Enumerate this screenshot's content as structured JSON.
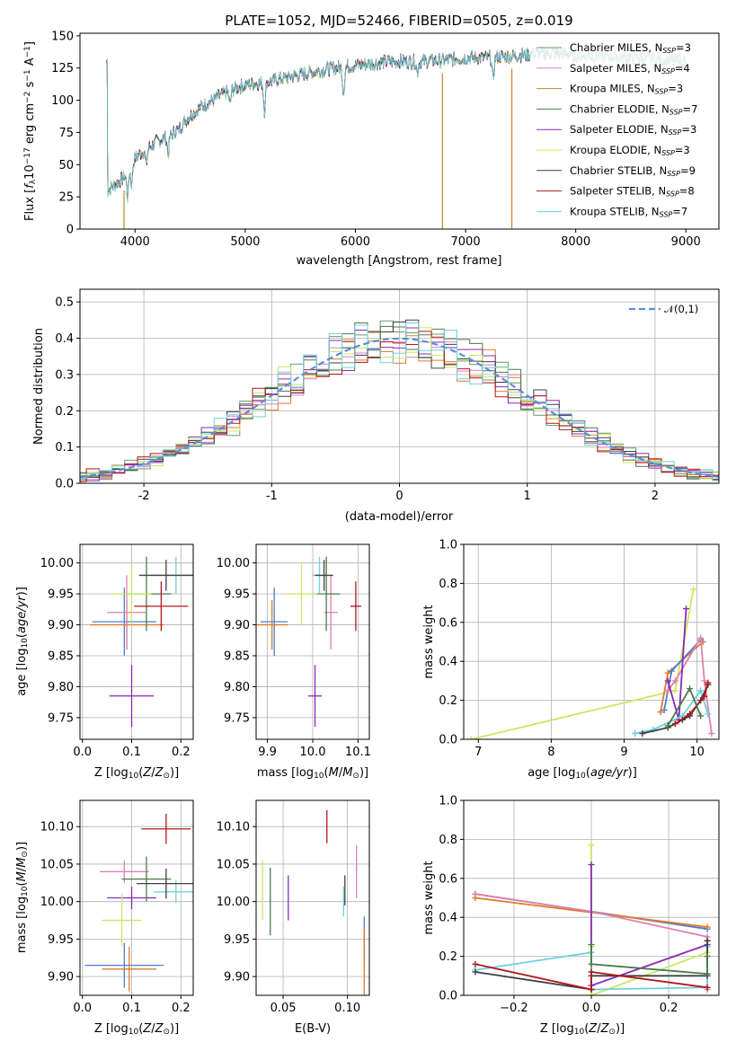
{
  "colors": {
    "Chabrier MILES": "#6a9a6a",
    "Salpeter MILES": "#e07bd0",
    "Kroupa MILES": "#c08a20",
    "Chabrier ELODIE": "#4a7a4a",
    "Salpeter ELODIE": "#8a2ab8",
    "Kroupa ELODIE": "#e0e040",
    "Chabrier STELIB": "#404040",
    "Salpeter STELIB": "#b01818",
    "Kroupa STELIB": "#70d0e0",
    "fit_blue": "#4a7fd0",
    "fit_orange": "#e07a2a",
    "fit_pink": "#e080b0",
    "fit_lime": "#c8e860",
    "normal_curve": "#5b8fd6"
  },
  "chart_data": [
    {
      "id": "spectrum",
      "type": "line",
      "title": "PLATE=1052, MJD=52466, FIBERID=0505, z=0.019",
      "xlabel": "wavelength [Angstrom, rest frame]",
      "ylabel": "Flux [f_λ 10^-17 erg cm^-2 s^-1 A^-1]",
      "xlim": [
        3500,
        9300
      ],
      "ylim": [
        0,
        152
      ],
      "xticks": [
        4000,
        5000,
        6000,
        7000,
        8000,
        9000
      ],
      "yticks": [
        0,
        25,
        50,
        75,
        100,
        125,
        150
      ],
      "grid": false,
      "legend_position": "top-right",
      "legend": [
        {
          "label": "Chabrier MILES",
          "nssp": "3"
        },
        {
          "label": "Salpeter MILES",
          "nssp": "4"
        },
        {
          "label": "Kroupa MILES",
          "nssp": "3"
        },
        {
          "label": "Chabrier ELODIE",
          "nssp": "7"
        },
        {
          "label": "Salpeter ELODIE",
          "nssp": "3"
        },
        {
          "label": "Kroupa ELODIE",
          "nssp": "3"
        },
        {
          "label": "Chabrier STELIB",
          "nssp": "9"
        },
        {
          "label": "Salpeter STELIB",
          "nssp": "8"
        },
        {
          "label": "Kroupa STELIB",
          "nssp": "7"
        }
      ],
      "continuum": {
        "x": [
          3750,
          3900,
          4000,
          4100,
          4200,
          4300,
          4400,
          4500,
          4600,
          4800,
          5000,
          5200,
          5500,
          5800,
          6000,
          6300,
          6500,
          6800,
          7000,
          7200,
          7500,
          7800,
          8000,
          8500,
          9000
        ],
        "y": [
          30,
          40,
          55,
          62,
          68,
          72,
          78,
          88,
          95,
          105,
          112,
          114,
          120,
          125,
          127,
          130,
          130,
          131,
          133,
          133,
          135,
          137,
          135,
          133,
          130
        ]
      },
      "absorption_features": [
        {
          "x": 3933,
          "depth": 20
        },
        {
          "x": 3968,
          "depth": 15
        },
        {
          "x": 4102,
          "depth": 12
        },
        {
          "x": 4300,
          "depth": 14
        },
        {
          "x": 4861,
          "depth": 10
        },
        {
          "x": 5175,
          "depth": 22
        },
        {
          "x": 5893,
          "depth": 20
        },
        {
          "x": 6563,
          "depth": 8
        },
        {
          "x": 7250,
          "depth": 18
        }
      ],
      "drop_lines": [
        {
          "x": 3900,
          "color": "Kroupa MILES"
        },
        {
          "x": 6790,
          "color": "Kroupa MILES"
        },
        {
          "x": 7420,
          "color": "fit_orange"
        }
      ],
      "range_ends": [
        {
          "series": "Salpeter STELIB",
          "x_end": 7400
        },
        {
          "series": "Chabrier STELIB",
          "x_end": 8000
        }
      ]
    },
    {
      "id": "residuals",
      "type": "histogram",
      "xlabel": "(data-model)/error",
      "ylabel": "Normed distribution",
      "xlim": [
        -2.5,
        2.5
      ],
      "ylim": [
        0,
        0.535
      ],
      "xticks": [
        -2,
        -1,
        0,
        1,
        2
      ],
      "yticks": [
        0.0,
        0.1,
        0.2,
        0.3,
        0.4,
        0.5
      ],
      "grid": true,
      "legend_position": "top-right",
      "legend": [
        "𝒩(0,1)"
      ],
      "bin_width": 0.1,
      "curve": {
        "mean": 0,
        "sigma": 1,
        "style": "dashed"
      },
      "series": [
        {
          "name": "Chabrier MILES",
          "color": "Chabrier MILES"
        },
        {
          "name": "Salpeter MILES",
          "color": "Salpeter MILES"
        },
        {
          "name": "Kroupa MILES",
          "color": "fit_orange"
        },
        {
          "name": "Chabrier ELODIE",
          "color": "Chabrier ELODIE"
        },
        {
          "name": "Salpeter ELODIE",
          "color": "Salpeter ELODIE"
        },
        {
          "name": "Kroupa ELODIE",
          "color": "fit_lime"
        },
        {
          "name": "Chabrier STELIB",
          "color": "Chabrier STELIB"
        },
        {
          "name": "Salpeter STELIB",
          "color": "Salpeter STELIB"
        },
        {
          "name": "Kroupa STELIB",
          "color": "Kroupa STELIB"
        }
      ]
    },
    {
      "id": "age_vs_Z",
      "type": "errorbar",
      "xlabel": "Z [log10(Z/Z⊙)]",
      "ylabel": "age [log10(age/yr)]",
      "xlim": [
        -0.005,
        0.225
      ],
      "ylim": [
        9.715,
        10.03
      ],
      "xticks": [
        0.0,
        0.1,
        0.2
      ],
      "xtick_labels": [
        "0.0",
        "0.1",
        "0.2"
      ],
      "yticks": [
        9.75,
        9.8,
        9.85,
        9.9,
        9.95,
        10.0
      ],
      "yticklabels": [
        "9.75",
        "9.80",
        "9.85",
        "9.90",
        "9.95",
        "10.00"
      ],
      "grid": true,
      "points": [
        {
          "x": 0.085,
          "y": 9.905,
          "xerr": 0.065,
          "yerr": 0.055,
          "color": "fit_blue"
        },
        {
          "x": 0.09,
          "y": 9.9,
          "xerr": 0.075,
          "yerr": 0.04,
          "color": "fit_orange"
        },
        {
          "x": 0.09,
          "y": 9.92,
          "xerr": 0.04,
          "yerr": 0.06,
          "color": "fit_pink"
        },
        {
          "x": 0.1,
          "y": 9.785,
          "xerr": 0.045,
          "yerr": 0.05,
          "color": "Salpeter ELODIE"
        },
        {
          "x": 0.13,
          "y": 9.95,
          "xerr": 0.05,
          "yerr": 0.06,
          "color": "Chabrier ELODIE"
        },
        {
          "x": 0.1,
          "y": 9.95,
          "xerr": 0.04,
          "yerr": 0.05,
          "color": "fit_lime"
        },
        {
          "x": 0.16,
          "y": 9.93,
          "xerr": 0.055,
          "yerr": 0.04,
          "color": "Salpeter STELIB"
        },
        {
          "x": 0.19,
          "y": 9.98,
          "xerr": 0.05,
          "yerr": 0.03,
          "color": "Kroupa STELIB"
        },
        {
          "x": 0.17,
          "y": 9.98,
          "xerr": 0.055,
          "yerr": 0.025,
          "color": "Chabrier STELIB"
        }
      ]
    },
    {
      "id": "age_vs_mass",
      "type": "errorbar",
      "xlabel": "mass [log10(M/M⊙)]",
      "xlim": [
        9.875,
        10.125
      ],
      "ylim": [
        9.715,
        10.03
      ],
      "xticks": [
        9.9,
        10.0,
        10.1
      ],
      "xtick_labels": [
        "9.9",
        "10.0",
        "10.1"
      ],
      "yticks": [
        9.75,
        9.8,
        9.85,
        9.9,
        9.95,
        10.0
      ],
      "yticklabels": [
        "9.75",
        "9.80",
        "9.85",
        "9.90",
        "9.95",
        "10.00"
      ],
      "grid": true,
      "points": [
        {
          "x": 9.915,
          "y": 9.905,
          "xerr": 0.03,
          "yerr": 0.055,
          "color": "fit_blue"
        },
        {
          "x": 9.91,
          "y": 9.9,
          "xerr": 0.035,
          "yerr": 0.04,
          "color": "fit_orange"
        },
        {
          "x": 10.04,
          "y": 9.92,
          "xerr": 0.015,
          "yerr": 0.06,
          "color": "fit_pink"
        },
        {
          "x": 10.005,
          "y": 9.785,
          "xerr": 0.015,
          "yerr": 0.05,
          "color": "Salpeter ELODIE"
        },
        {
          "x": 10.03,
          "y": 9.95,
          "xerr": 0.03,
          "yerr": 0.06,
          "color": "Chabrier ELODIE"
        },
        {
          "x": 9.975,
          "y": 9.95,
          "xerr": 0.035,
          "yerr": 0.05,
          "color": "fit_lime"
        },
        {
          "x": 10.095,
          "y": 9.93,
          "xerr": 0.012,
          "yerr": 0.04,
          "color": "Salpeter STELIB"
        },
        {
          "x": 10.015,
          "y": 9.98,
          "xerr": 0.015,
          "yerr": 0.03,
          "color": "Kroupa STELIB"
        },
        {
          "x": 10.025,
          "y": 9.98,
          "xerr": 0.02,
          "yerr": 0.025,
          "color": "Chabrier STELIB"
        }
      ]
    },
    {
      "id": "weight_vs_age",
      "type": "line",
      "xlabel": "age [log10(age/yr)]",
      "ylabel": "mass weight",
      "xlim": [
        6.8,
        10.3
      ],
      "ylim": [
        0,
        1
      ],
      "xticks": [
        7,
        8,
        9,
        10
      ],
      "yticks": [
        0.0,
        0.2,
        0.4,
        0.6,
        0.8,
        1.0
      ],
      "yticklabels": [
        "0.0",
        "0.2",
        "0.4",
        "0.6",
        "0.8",
        "1.0"
      ],
      "grid": true,
      "series": [
        {
          "color": "fit_lime",
          "x": [
            6.9,
            9.7,
            9.95
          ],
          "y": [
            0.0,
            0.25,
            0.77
          ]
        },
        {
          "color": "fit_orange",
          "x": [
            9.5,
            9.6,
            10.08
          ],
          "y": [
            0.14,
            0.34,
            0.5
          ]
        },
        {
          "color": "fit_blue",
          "x": [
            9.55,
            9.65,
            10.05
          ],
          "y": [
            0.15,
            0.35,
            0.51
          ]
        },
        {
          "color": "fit_pink",
          "x": [
            9.6,
            9.7,
            10.05,
            10.1,
            10.2
          ],
          "y": [
            0.25,
            0.3,
            0.52,
            0.3,
            0.03
          ]
        },
        {
          "color": "Salpeter ELODIE",
          "x": [
            9.6,
            9.75,
            9.85
          ],
          "y": [
            0.3,
            0.1,
            0.67
          ]
        },
        {
          "color": "Kroupa STELIB",
          "x": [
            9.15,
            9.4,
            9.8,
            10.05,
            10.15
          ],
          "y": [
            0.03,
            0.05,
            0.12,
            0.25,
            0.13
          ]
        },
        {
          "color": "Chabrier STELIB",
          "x": [
            9.25,
            9.6,
            9.8,
            9.9,
            10.05,
            10.15
          ],
          "y": [
            0.03,
            0.06,
            0.1,
            0.12,
            0.2,
            0.28
          ]
        },
        {
          "color": "Salpeter STELIB",
          "x": [
            9.7,
            9.9,
            10.1,
            10.15
          ],
          "y": [
            0.08,
            0.13,
            0.22,
            0.29
          ]
        },
        {
          "color": "Chabrier ELODIE",
          "x": [
            9.6,
            9.9,
            10.05
          ],
          "y": [
            0.07,
            0.26,
            0.12
          ]
        }
      ]
    },
    {
      "id": "mass_vs_Z",
      "type": "errorbar",
      "xlabel": "Z [log10(Z/Z⊙)]",
      "ylabel": "mass [log10(M/M⊙)]",
      "xlim": [
        -0.005,
        0.225
      ],
      "ylim": [
        9.875,
        10.135
      ],
      "xticks": [
        0.0,
        0.1,
        0.2
      ],
      "xtick_labels": [
        "0.0",
        "0.1",
        "0.2"
      ],
      "yticks": [
        9.9,
        9.95,
        10.0,
        10.05,
        10.1
      ],
      "yticklabels": [
        "9.90",
        "9.95",
        "10.00",
        "10.05",
        "10.10"
      ],
      "grid": true,
      "points": [
        {
          "x": 0.085,
          "y": 9.915,
          "xerr": 0.08,
          "yerr": 0.03,
          "color": "fit_blue"
        },
        {
          "x": 0.095,
          "y": 9.91,
          "xerr": 0.055,
          "yerr": 0.03,
          "color": "fit_orange"
        },
        {
          "x": 0.085,
          "y": 10.04,
          "xerr": 0.05,
          "yerr": 0.015,
          "color": "fit_pink"
        },
        {
          "x": 0.1,
          "y": 10.005,
          "xerr": 0.05,
          "yerr": 0.015,
          "color": "Salpeter ELODIE"
        },
        {
          "x": 0.13,
          "y": 10.03,
          "xerr": 0.05,
          "yerr": 0.03,
          "color": "Chabrier ELODIE"
        },
        {
          "x": 0.08,
          "y": 9.975,
          "xerr": 0.04,
          "yerr": 0.035,
          "color": "fit_lime"
        },
        {
          "x": 0.17,
          "y": 10.097,
          "xerr": 0.05,
          "yerr": 0.02,
          "color": "Salpeter STELIB"
        },
        {
          "x": 0.19,
          "y": 10.013,
          "xerr": 0.045,
          "yerr": 0.015,
          "color": "Kroupa STELIB"
        },
        {
          "x": 0.17,
          "y": 10.024,
          "xerr": 0.06,
          "yerr": 0.02,
          "color": "Chabrier STELIB"
        }
      ]
    },
    {
      "id": "mass_vs_EBV",
      "type": "errorbar",
      "xlabel": "E(B-V)",
      "xlim": [
        0.029,
        0.117
      ],
      "ylim": [
        9.875,
        10.135
      ],
      "xticks": [
        0.05,
        0.1
      ],
      "xtick_labels": [
        "0.05",
        "0.10"
      ],
      "yticks": [
        9.9,
        9.95,
        10.0,
        10.05,
        10.1
      ],
      "yticklabels": [
        "9.90",
        "9.95",
        "10.00",
        "10.05",
        "10.10"
      ],
      "grid": true,
      "points": [
        {
          "x": 0.113,
          "y": 9.95,
          "xerr": 0,
          "yerr": 0.03,
          "color": "fit_blue"
        },
        {
          "x": 0.113,
          "y": 9.92,
          "xerr": 0,
          "yerr": 0.045,
          "color": "fit_orange"
        },
        {
          "x": 0.107,
          "y": 10.04,
          "xerr": 0,
          "yerr": 0.035,
          "color": "fit_pink"
        },
        {
          "x": 0.054,
          "y": 10.005,
          "xerr": 0,
          "yerr": 0.03,
          "color": "Salpeter ELODIE"
        },
        {
          "x": 0.04,
          "y": 10.0,
          "xerr": 0,
          "yerr": 0.045,
          "color": "Chabrier ELODIE"
        },
        {
          "x": 0.034,
          "y": 10.015,
          "xerr": 0,
          "yerr": 0.04,
          "color": "fit_lime"
        },
        {
          "x": 0.084,
          "y": 10.1,
          "xerr": 0,
          "yerr": 0.022,
          "color": "Salpeter STELIB"
        },
        {
          "x": 0.097,
          "y": 10.0,
          "xerr": 0,
          "yerr": 0.02,
          "color": "Kroupa STELIB"
        },
        {
          "x": 0.098,
          "y": 10.015,
          "xerr": 0,
          "yerr": 0.02,
          "color": "Chabrier STELIB"
        }
      ]
    },
    {
      "id": "weight_vs_Z",
      "type": "line",
      "xlabel": "Z [log10(Z/Z⊙)]",
      "ylabel": "mass weight",
      "xlim": [
        -0.33,
        0.33
      ],
      "ylim": [
        0,
        1
      ],
      "xticks": [
        -0.2,
        0.0,
        0.2
      ],
      "xtick_labels": [
        "−0.2",
        "0.0",
        "0.2"
      ],
      "yticks": [
        0.0,
        0.2,
        0.4,
        0.6,
        0.8,
        1.0
      ],
      "yticklabels": [
        "0.0",
        "0.2",
        "0.4",
        "0.6",
        "0.8",
        "1.0"
      ],
      "grid": true,
      "series": [
        {
          "color": "fit_blue",
          "x": [
            -0.3,
            0.3
          ],
          "y": [
            0.52,
            0.34
          ]
        },
        {
          "color": "fit_orange",
          "x": [
            -0.3,
            0.3
          ],
          "y": [
            0.5,
            0.35
          ]
        },
        {
          "color": "fit_pink",
          "x": [
            -0.3,
            0.0,
            0.3,
            0.3
          ],
          "y": [
            0.52,
            0.43,
            0.3,
            0.03
          ]
        },
        {
          "color": "fit_lime",
          "x": [
            0.0,
            0.0,
            0.0,
            0.3,
            0.3
          ],
          "y": [
            0.77,
            0.25,
            0.0,
            0.22,
            0.25
          ]
        },
        {
          "color": "Salpeter ELODIE",
          "x": [
            0.0,
            0.0,
            0.3
          ],
          "y": [
            0.67,
            0.05,
            0.26
          ]
        },
        {
          "color": "Kroupa STELIB",
          "x": [
            -0.3,
            0.0,
            0.0,
            0.3,
            0.3
          ],
          "y": [
            0.13,
            0.22,
            0.03,
            0.04,
            0.25
          ]
        },
        {
          "color": "Chabrier STELIB",
          "x": [
            -0.3,
            0.0,
            0.0,
            0.3,
            0.3
          ],
          "y": [
            0.12,
            0.03,
            0.1,
            0.1,
            0.28
          ]
        },
        {
          "color": "Salpeter STELIB",
          "x": [
            -0.3,
            0.0,
            0.0,
            0.3
          ],
          "y": [
            0.16,
            0.03,
            0.12,
            0.04
          ]
        },
        {
          "color": "Chabrier ELODIE",
          "x": [
            0.0,
            0.0,
            0.3,
            0.3
          ],
          "y": [
            0.26,
            0.16,
            0.11,
            0.2
          ]
        }
      ]
    }
  ]
}
